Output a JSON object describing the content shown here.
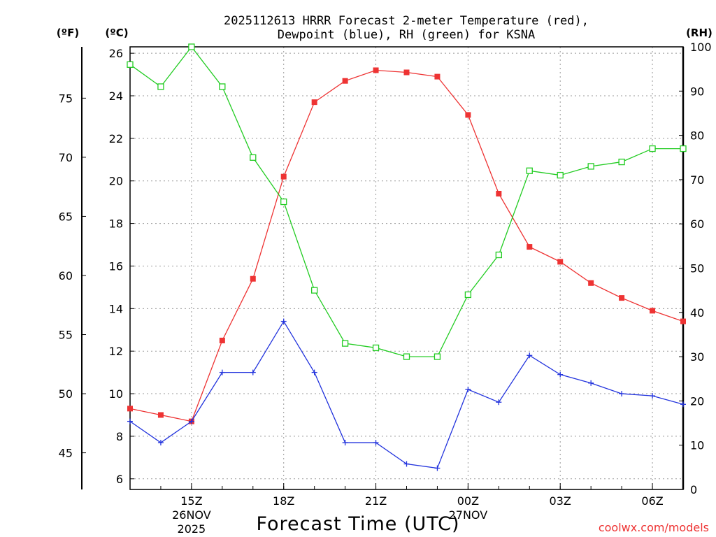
{
  "chart_data": {
    "type": "line",
    "title_line1": "2025112613 HRRR Forecast 2-meter Temperature (red),",
    "title_line2": "Dewpoint (blue), RH (green) for KSNA",
    "xlabel": "Forecast Time (UTC)",
    "ylabel_left_f": "(ºF)",
    "ylabel_left_c": "(ºC)",
    "ylabel_right": "(RH)",
    "credit": "coolwx.com/models",
    "x_hours": [
      13,
      14,
      15,
      16,
      17,
      18,
      19,
      20,
      21,
      22,
      23,
      24,
      25,
      26,
      27,
      28,
      29,
      30,
      31
    ],
    "xlim": [
      13,
      31
    ],
    "celsius_ylim": [
      5.5,
      26.3
    ],
    "celsius_ticks": [
      6,
      8,
      10,
      12,
      14,
      16,
      18,
      20,
      22,
      24,
      26
    ],
    "fahrenheit_ticks": [
      45,
      50,
      55,
      60,
      65,
      70,
      75
    ],
    "rh_ylim": [
      0,
      100
    ],
    "rh_ticks": [
      0,
      10,
      20,
      30,
      40,
      50,
      60,
      70,
      80,
      90,
      100
    ],
    "x_ticks": [
      {
        "hour": 15,
        "label": "15Z",
        "sub1": "26NOV",
        "sub2": "2025"
      },
      {
        "hour": 18,
        "label": "18Z",
        "sub1": "",
        "sub2": ""
      },
      {
        "hour": 21,
        "label": "21Z",
        "sub1": "",
        "sub2": ""
      },
      {
        "hour": 24,
        "label": "00Z",
        "sub1": "27NOV",
        "sub2": ""
      },
      {
        "hour": 27,
        "label": "03Z",
        "sub1": "",
        "sub2": ""
      },
      {
        "hour": 30,
        "label": "06Z",
        "sub1": "",
        "sub2": ""
      }
    ],
    "series": [
      {
        "name": "Temperature",
        "axis": "celsius",
        "color": "#ee3333",
        "marker": "filled-square",
        "values": [
          9.3,
          9.0,
          8.7,
          12.5,
          15.4,
          20.2,
          23.7,
          24.7,
          25.2,
          25.1,
          24.9,
          23.1,
          19.4,
          16.9,
          16.2,
          15.2,
          14.5,
          13.9,
          13.4
        ]
      },
      {
        "name": "Dewpoint",
        "axis": "celsius",
        "color": "#2233dd",
        "marker": "plus",
        "values": [
          8.7,
          7.7,
          8.7,
          11.0,
          11.0,
          13.4,
          11.0,
          7.7,
          7.7,
          6.7,
          6.5,
          10.2,
          9.6,
          11.8,
          10.9,
          10.5,
          10.0,
          9.9,
          9.5
        ]
      },
      {
        "name": "RH",
        "axis": "rh",
        "color": "#22cc22",
        "marker": "open-square",
        "values": [
          96,
          91,
          100,
          91,
          75,
          65,
          45,
          33,
          32,
          30,
          30,
          44,
          53,
          72,
          71,
          73,
          74,
          77,
          77
        ]
      }
    ]
  }
}
